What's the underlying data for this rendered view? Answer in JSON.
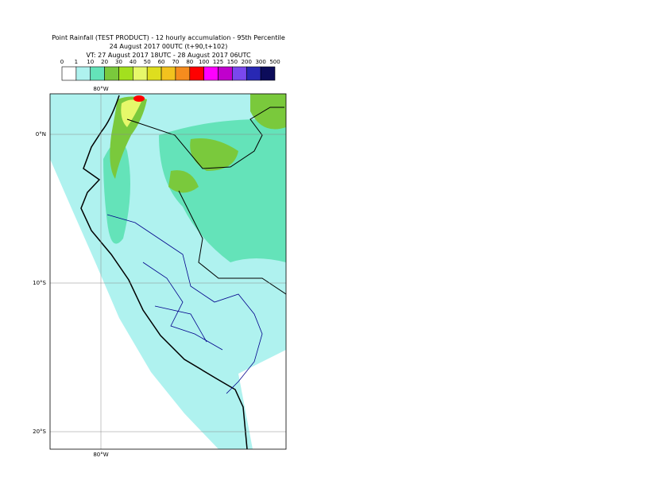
{
  "header": {
    "lines": [
      "Point Rainfall (TEST PRODUCT) - 12 hourly accumulation - 95th Percentile",
      "24 August 2017 00UTC (t+90,t+102)",
      "VT: 27 August 2017 18UTC - 28 August 2017 06UTC"
    ]
  },
  "legend": {
    "levels": [
      0,
      1,
      10,
      20,
      30,
      40,
      50,
      60,
      70,
      80,
      100,
      125,
      150,
      200,
      300,
      500
    ],
    "colors": [
      "#ffffff",
      "#aff2ef",
      "#64e3b9",
      "#7ac93c",
      "#a3e01e",
      "#e6f86a",
      "#dede1e",
      "#f2c21e",
      "#f58c1e",
      "#ff0000",
      "#ff00ff",
      "#c000cc",
      "#7a48ee",
      "#2828b4",
      "#0c0c5a"
    ]
  },
  "map": {
    "lon_labels": [
      "80°W",
      "80°W"
    ],
    "lat_labels": [
      "0°N",
      "10°S",
      "20°S"
    ]
  }
}
